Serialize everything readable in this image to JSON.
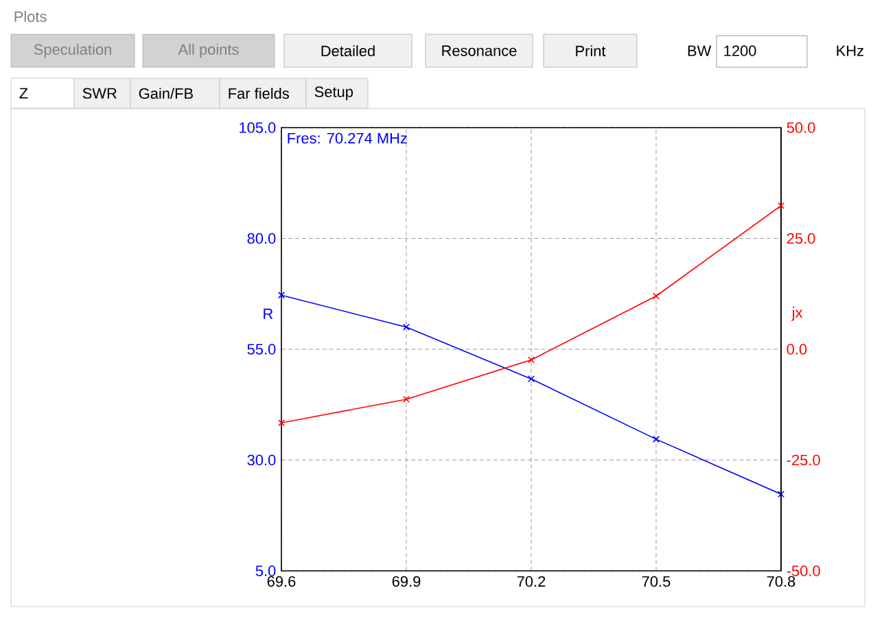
{
  "chart_data": {
    "type": "line",
    "title": "Plots",
    "ylabel": "R",
    "y2label": "jx",
    "x": [
      69.6,
      69.9,
      70.2,
      70.5,
      70.8
    ],
    "xlim": [
      69.6,
      70.8
    ],
    "xticks": [
      69.6,
      69.9,
      70.2,
      70.5,
      70.8
    ],
    "ylim": [
      5,
      105
    ],
    "yticks": [
      {
        "value": 5,
        "label": "5.0"
      },
      {
        "value": 30,
        "label": "30.0"
      },
      {
        "value": 55,
        "label": "55.0"
      },
      {
        "value": 80,
        "label": "80.0"
      },
      {
        "value": 105,
        "label": "105.0"
      }
    ],
    "y2lim": [
      -50,
      50
    ],
    "y2ticks": [
      {
        "value": -50,
        "label": "-50.0"
      },
      {
        "value": -25,
        "label": "-25.0"
      },
      {
        "value": 0,
        "label": "0.0"
      },
      {
        "value": 25,
        "label": "25.0"
      },
      {
        "value": 50,
        "label": "50.0"
      }
    ],
    "series": [
      {
        "color": "#0000ff",
        "values": [
          67.2,
          60.0,
          48.3,
          34.7,
          22.3
        ]
      },
      {
        "color": "#ff0000",
        "axis": "y2",
        "values": [
          -16.6,
          -11.3,
          -2.4,
          12.0,
          32.4
        ]
      }
    ],
    "grid": true,
    "marker": "cross",
    "line_style": "solid",
    "annotations": [
      "Fres: 70.274 MHz",
      "Speculation",
      "All points",
      "Detailed",
      "Resonance",
      "Print",
      "BW",
      "1200",
      "KHz",
      "Z",
      "SWR",
      "Gain/FB",
      "Far fields",
      "Setup"
    ]
  }
}
